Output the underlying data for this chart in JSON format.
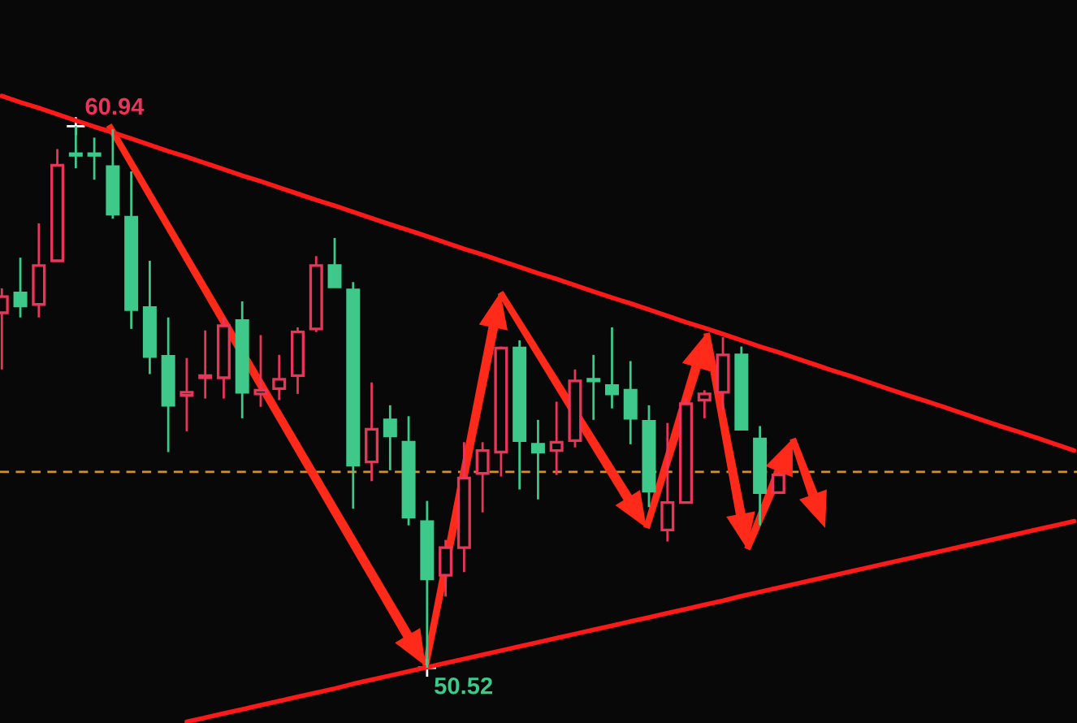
{
  "chart_data": {
    "type": "candlestick",
    "categories": [
      null,
      null,
      null,
      null,
      null,
      null,
      null,
      null,
      null,
      null,
      null,
      null,
      null,
      null,
      null,
      null,
      null,
      null,
      null,
      null,
      null,
      null,
      null,
      null,
      null,
      null,
      null,
      null,
      null,
      null,
      null,
      null,
      null,
      null,
      null,
      null,
      null,
      null,
      null,
      null,
      null,
      null,
      null,
      null,
      null,
      null,
      null,
      null,
      null,
      null,
      null,
      null,
      null,
      null,
      null,
      null,
      null,
      null,
      null
    ],
    "ohlc": [
      [
        57.35,
        57.82,
        56.26,
        57.66
      ],
      [
        57.73,
        58.41,
        57.26,
        57.48
      ],
      [
        57.51,
        59.07,
        57.26,
        58.26
      ],
      [
        58.35,
        60.5,
        58.35,
        60.19
      ],
      [
        60.41,
        60.94,
        60.13,
        60.38
      ],
      [
        60.41,
        60.72,
        59.91,
        60.38
      ],
      [
        60.16,
        60.88,
        59.16,
        59.25
      ],
      [
        59.19,
        60.07,
        57.04,
        57.41
      ],
      [
        57.45,
        58.35,
        56.17,
        56.51
      ],
      [
        56.51,
        57.26,
        54.67,
        55.57
      ],
      [
        55.76,
        56.48,
        55.07,
        55.82
      ],
      [
        56.1,
        57.01,
        55.7,
        56.14
      ],
      [
        56.1,
        57.26,
        55.7,
        57.1
      ],
      [
        57.2,
        57.57,
        55.32,
        55.82
      ],
      [
        55.79,
        56.92,
        55.54,
        55.86
      ],
      [
        55.89,
        56.54,
        55.67,
        56.07
      ],
      [
        56.14,
        57.07,
        55.79,
        56.98
      ],
      [
        57.04,
        58.44,
        56.98,
        58.26
      ],
      [
        58.26,
        58.79,
        57.85,
        57.85
      ],
      [
        57.79,
        57.94,
        53.58,
        54.42
      ],
      [
        54.48,
        56.01,
        54.11,
        55.11
      ],
      [
        55.29,
        55.57,
        54.32,
        54.98
      ],
      [
        54.86,
        55.36,
        53.26,
        53.42
      ],
      [
        53.33,
        53.73,
        50.52,
        52.23
      ],
      [
        52.3,
        52.98,
        51.89,
        52.83
      ],
      [
        52.83,
        54.86,
        52.36,
        54.17
      ],
      [
        54.26,
        54.86,
        53.51,
        54.7
      ],
      [
        54.67,
        56.7,
        54.2,
        56.67
      ],
      [
        56.67,
        56.82,
        53.95,
        54.89
      ],
      [
        54.82,
        55.29,
        53.76,
        54.67
      ],
      [
        54.7,
        55.64,
        54.23,
        54.86
      ],
      [
        54.89,
        56.26,
        54.76,
        56.04
      ],
      [
        56.07,
        56.54,
        55.29,
        56.04
      ],
      [
        55.95,
        57.07,
        55.51,
        55.79
      ],
      [
        55.86,
        56.42,
        54.82,
        55.32
      ],
      [
        55.26,
        55.57,
        53.61,
        53.92
      ],
      [
        53.17,
        55.23,
        52.95,
        53.7
      ],
      [
        53.7,
        55.7,
        53.7,
        55.6
      ],
      [
        55.67,
        55.86,
        55.32,
        55.79
      ],
      [
        55.82,
        56.88,
        55.48,
        56.54
      ],
      [
        56.54,
        56.7,
        55.11,
        55.11
      ],
      [
        54.92,
        55.17,
        53.26,
        53.89
      ],
      [
        53.89,
        54.29,
        53.89,
        54.23
      ],
      null,
      null,
      null,
      null,
      null,
      null,
      null,
      null,
      null,
      null,
      null,
      null,
      null,
      null,
      null,
      null
    ],
    "colors": [
      "#e8365a",
      "#3ec98a",
      "#e8365a",
      "#e8365a",
      "#3ec98a",
      "#3ec98a",
      "#3ec98a",
      "#3ec98a",
      "#3ec98a",
      "#3ec98a",
      "#e8365a",
      "#e8365a",
      "#e8365a",
      "#3ec98a",
      "#e8365a",
      "#e8365a",
      "#e8365a",
      "#e8365a",
      "#3ec98a",
      "#3ec98a",
      "#e8365a",
      "#3ec98a",
      "#3ec98a",
      "#3ec98a",
      "#e8365a",
      "#e8365a",
      "#e8365a",
      "#e8365a",
      "#3ec98a",
      "#3ec98a",
      "#e8365a",
      "#e8365a",
      "#3ec98a",
      "#3ec98a",
      "#3ec98a",
      "#3ec98a",
      "#e8365a",
      "#e8365a",
      "#e8365a",
      "#e8365a",
      "#3ec98a",
      "#3ec98a",
      "#e8365a",
      null,
      null,
      null,
      null,
      null,
      null,
      null,
      null,
      null,
      null,
      null,
      null,
      null,
      null,
      null,
      null
    ],
    "series": [
      {
        "type": "line",
        "color": "#ff1a1a",
        "values": [
          61.52,
          61.4,
          61.29,
          61.17,
          61.05,
          60.93,
          60.82,
          60.7,
          60.58,
          60.46,
          60.35,
          60.23,
          60.11,
          59.99,
          59.88,
          59.76,
          59.64,
          59.52,
          59.41,
          59.29,
          59.17,
          59.05,
          58.94,
          58.82,
          58.7,
          58.58,
          58.47,
          58.35,
          58.23,
          58.11,
          58.0,
          57.88,
          57.76,
          57.64,
          57.53,
          57.41,
          57.29,
          57.17,
          57.06,
          56.94,
          56.82,
          56.7,
          56.59,
          56.47,
          56.35,
          56.23,
          56.12,
          56.0,
          55.88,
          55.76,
          55.65,
          55.53,
          55.41,
          55.29,
          55.17,
          55.06,
          54.94,
          54.82,
          54.7
        ]
      },
      {
        "type": "line",
        "color": "#ff1a1a",
        "values": [
          null,
          null,
          null,
          null,
          null,
          null,
          null,
          null,
          null,
          null,
          49.48,
          49.56,
          49.64,
          49.72,
          49.8,
          49.88,
          49.96,
          50.04,
          50.12,
          50.21,
          50.29,
          50.37,
          50.45,
          50.53,
          50.61,
          50.69,
          50.77,
          50.85,
          50.93,
          51.01,
          51.09,
          51.17,
          51.25,
          51.33,
          51.41,
          51.49,
          51.57,
          51.65,
          51.73,
          51.81,
          51.9,
          51.98,
          52.06,
          52.14,
          52.22,
          52.3,
          52.38,
          52.46,
          52.54,
          52.62,
          52.7,
          52.78,
          52.86,
          52.94,
          53.02,
          53.1,
          53.18,
          53.26,
          53.34
        ]
      }
    ],
    "ref_lines": [
      {
        "axis": "y",
        "value": 54.29,
        "color": "#d4902a",
        "line_style": "dashed"
      }
    ],
    "annotations": [
      {
        "text": "60.94",
        "y": 60.94
      },
      "50.52"
    ],
    "tick_labels": false
  }
}
